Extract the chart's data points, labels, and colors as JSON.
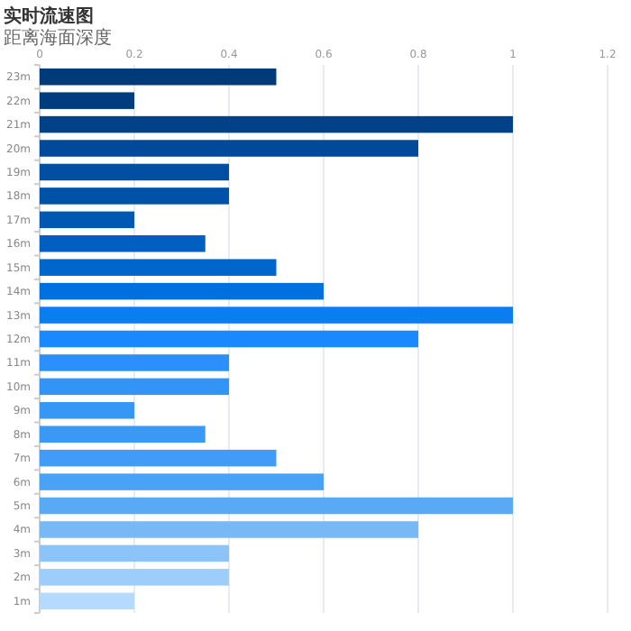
{
  "chart_data": {
    "type": "bar",
    "orientation": "horizontal",
    "title": "实时流速图",
    "ylabel": "距离海面深度",
    "categories": [
      "23m",
      "22m",
      "21m",
      "20m",
      "19m",
      "18m",
      "17m",
      "16m",
      "15m",
      "14m",
      "13m",
      "12m",
      "11m",
      "10m",
      "9m",
      "8m",
      "7m",
      "6m",
      "5m",
      "4m",
      "3m",
      "2m",
      "1m"
    ],
    "values": [
      0.5,
      0.2,
      1,
      0.8,
      0.4,
      0.4,
      0.2,
      0.35,
      0.5,
      0.6,
      1,
      0.8,
      0.4,
      0.4,
      0.2,
      0.35,
      0.5,
      0.6,
      1,
      0.8,
      0.4,
      0.4,
      0.2
    ],
    "colors": [
      "#003a78",
      "#003d7e",
      "#004187",
      "#004a99",
      "#004fa3",
      "#0052a8",
      "#0058b3",
      "#005fc0",
      "#0066cc",
      "#0070de",
      "#0a7ef0",
      "#1a88ff",
      "#2b8ffc",
      "#3394f7",
      "#3797f5",
      "#3a99f5",
      "#409cf7",
      "#4aa2f7",
      "#5aa9f5",
      "#78b8f5",
      "#8cc4f8",
      "#9dcdfa",
      "#b5daff"
    ],
    "xlim": [
      0,
      1.2
    ],
    "xticks": [
      0,
      0.2,
      0.4,
      0.6,
      0.8,
      1,
      1.2
    ],
    "grid": "x"
  }
}
